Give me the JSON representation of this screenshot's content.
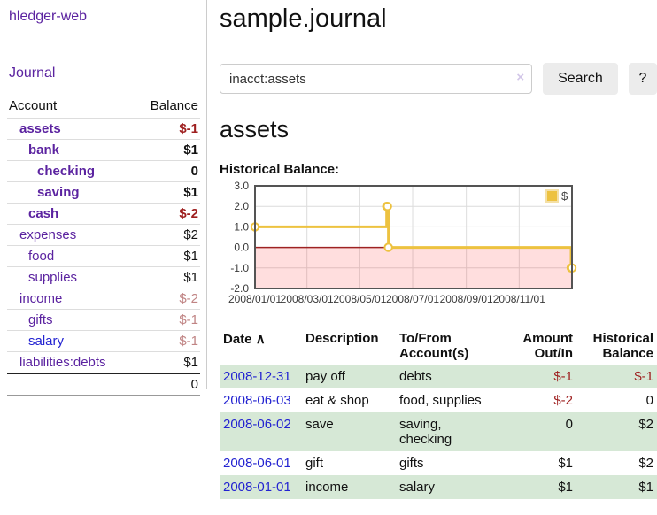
{
  "app": {
    "brand": "hledger-web",
    "nav_journal": "Journal"
  },
  "sidebar": {
    "columns": {
      "account": "Account",
      "balance": "Balance"
    },
    "accounts": [
      {
        "name": "assets",
        "indent": 1,
        "bold": true,
        "balance": "$-1",
        "neg": "strong"
      },
      {
        "name": "bank",
        "indent": 2,
        "bold": true,
        "balance": "$1"
      },
      {
        "name": "checking",
        "indent": 3,
        "bold": true,
        "balance": "0"
      },
      {
        "name": "saving",
        "indent": 3,
        "bold": true,
        "balance": "$1"
      },
      {
        "name": "cash",
        "indent": 2,
        "bold": true,
        "balance": "$-2",
        "neg": "strong"
      },
      {
        "name": "expenses",
        "indent": 1,
        "bold": false,
        "balance": "$2"
      },
      {
        "name": "food",
        "indent": 2,
        "bold": false,
        "balance": "$1"
      },
      {
        "name": "supplies",
        "indent": 2,
        "bold": false,
        "balance": "$1"
      },
      {
        "name": "income",
        "indent": 1,
        "bold": false,
        "balance": "$-2",
        "neg": "soft"
      },
      {
        "name": "gifts",
        "indent": 2,
        "bold": false,
        "balance": "$-1",
        "neg": "soft"
      },
      {
        "name": "salary",
        "indent": 2,
        "bold": false,
        "balance": "$-1",
        "neg": "soft",
        "blue": true
      },
      {
        "name": "liabilities:debts",
        "indent": 1,
        "bold": false,
        "balance": "$1"
      }
    ],
    "total": "0"
  },
  "header": {
    "title": "sample.journal"
  },
  "search": {
    "value": "inacct:assets",
    "clear_icon": "×",
    "button": "Search",
    "help_button": "?"
  },
  "account_page": {
    "heading": "assets",
    "chart_label": "Historical Balance:"
  },
  "chart_data": {
    "type": "line",
    "style": "step",
    "series": [
      {
        "name": "$",
        "color": "#edc240",
        "points": [
          [
            "2008-01-01",
            1
          ],
          [
            "2008-06-01",
            2
          ],
          [
            "2008-06-02",
            2
          ],
          [
            "2008-06-03",
            0
          ],
          [
            "2008-12-31",
            -1
          ]
        ]
      }
    ],
    "x_ticks": [
      "2008/01/01",
      "2008/03/01",
      "2008/05/01",
      "2008/07/01",
      "2008/09/01",
      "2008/11/01"
    ],
    "x_range_days": 366,
    "y_ticks": [
      "3.0",
      "2.0",
      "1.0",
      "0.0",
      "-1.0",
      "-2.0"
    ],
    "ylim": [
      -2,
      3
    ],
    "grid_color": "#dcdcdc",
    "border_color": "#545454",
    "zero_line_color": "#9e2222",
    "negative_fill": "rgba(255,0,0,0.13)",
    "legend": {
      "label": "$",
      "position": "top-right"
    }
  },
  "register": {
    "headers": {
      "date": "Date",
      "sort_icon": "∧",
      "description": "Description",
      "accounts": "To/From Account(s)",
      "amount": "Amount Out/In",
      "balance": "Historical Balance"
    },
    "rows": [
      {
        "date": "2008-12-31",
        "description": "pay off",
        "accounts": "debts",
        "amount": "$-1",
        "balance": "$-1"
      },
      {
        "date": "2008-06-03",
        "description": "eat & shop",
        "accounts": "food, supplies",
        "amount": "$-2",
        "balance": "0"
      },
      {
        "date": "2008-06-02",
        "description": "save",
        "accounts": "saving, checking",
        "amount": "0",
        "balance": "$2"
      },
      {
        "date": "2008-06-01",
        "description": "gift",
        "accounts": "gifts",
        "amount": "$1",
        "balance": "$2"
      },
      {
        "date": "2008-01-01",
        "description": "income",
        "accounts": "salary",
        "amount": "$1",
        "balance": "$1"
      }
    ]
  }
}
